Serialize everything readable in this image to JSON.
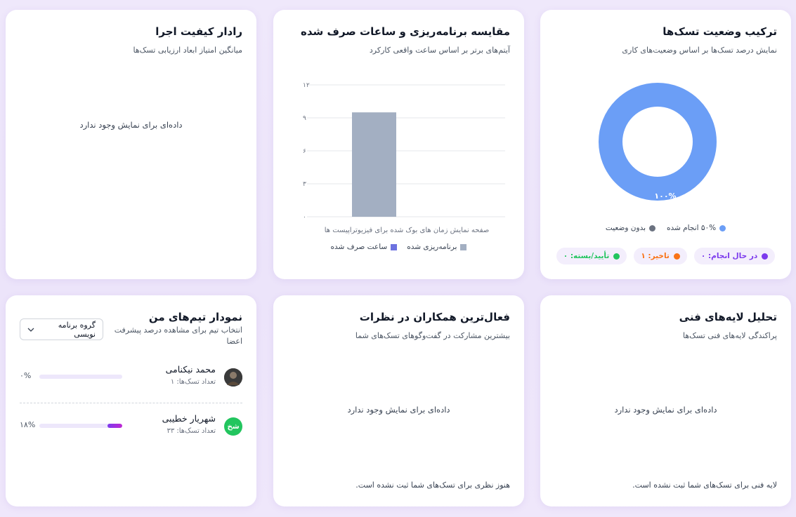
{
  "status_card": {
    "title": "ترکیب وضعیت تسک‌ها",
    "subtitle": "نمایش درصد تسک‌ها بر اساس وضعیت‌های کاری",
    "donut_label": "۱۰۰%",
    "legend": [
      {
        "label": "۵۰% انجام شده",
        "color": "#6b9ef6"
      },
      {
        "label": "بدون وضعیت",
        "color": "#6b7280"
      }
    ],
    "pills": [
      {
        "label": "در حال انجام: ۰",
        "color": "#7c3aed"
      },
      {
        "label": "تاخیر: ۱",
        "color": "#f97316"
      },
      {
        "label": "تأیید/بسته: ۰",
        "color": "#22c55e"
      }
    ]
  },
  "plan_card": {
    "title": "مقایسه برنامه‌ریزی و ساعات صرف شده",
    "subtitle": "آیتم‌های برتر بر اساس ساعت واقعی کارکرد",
    "legend": [
      {
        "label": "برنامه‌ریزی شده",
        "color": "#a3afc2"
      },
      {
        "label": "ساعت صرف شده",
        "color": "#6d72e0"
      }
    ]
  },
  "chart_data": {
    "type": "bar",
    "categories": [
      "صفحه نمایش زمان های بوک شده برای فیزیوتراپیست ها"
    ],
    "series": [
      {
        "name": "برنامه‌ریزی شده",
        "values": [
          9.5
        ],
        "color": "#a3afc2"
      },
      {
        "name": "ساعت صرف شده",
        "values": [
          0
        ],
        "color": "#6d72e0"
      }
    ],
    "y_ticks": [
      "۰",
      "۳",
      "۶",
      "۹",
      "۱۲"
    ],
    "ylim": [
      0,
      12
    ],
    "grid": true,
    "legend_position": "bottom"
  },
  "radar_card": {
    "title": "رادار کیفیت اجرا",
    "subtitle": "میانگین امتیاز ابعاد ارزیابی تسک‌ها",
    "empty": "داده‌ای برای نمایش وجود ندارد"
  },
  "layers_card": {
    "title": "تحلیل لایه‌های فنی",
    "subtitle": "پراکندگی لایه‌های فنی تسک‌ها",
    "empty": "داده‌ای برای نمایش وجود ندارد",
    "note": "لایه فنی برای تسک‌های شما ثبت نشده است."
  },
  "collab_card": {
    "title": "فعال‌ترین همکاران در نظرات",
    "subtitle": "بیشترین مشارکت در گفت‌وگوهای تسک‌های شما",
    "empty": "داده‌ای برای نمایش وجود ندارد",
    "note": "هنوز نظری برای تسک‌های شما ثبت نشده است."
  },
  "teams_card": {
    "title": "نمودار تیم‌های من",
    "subtitle": "انتخاب تیم برای مشاهده درصد پیشرفت اعضا",
    "select_value": "گروه برنامه نویسی",
    "members": [
      {
        "name": "محمد نیکنامی",
        "count": "تعداد تسک‌ها: ۱",
        "percent_label": "۰%",
        "progress": 0,
        "initials": "",
        "avatar_color": "#2b2b2b"
      },
      {
        "name": "شهریار خطیبی",
        "count": "تعداد تسک‌ها: ۳۳",
        "percent_label": "۱۸%",
        "progress": 0.18,
        "initials": "شخ",
        "avatar_color": "#22c55e"
      }
    ]
  }
}
